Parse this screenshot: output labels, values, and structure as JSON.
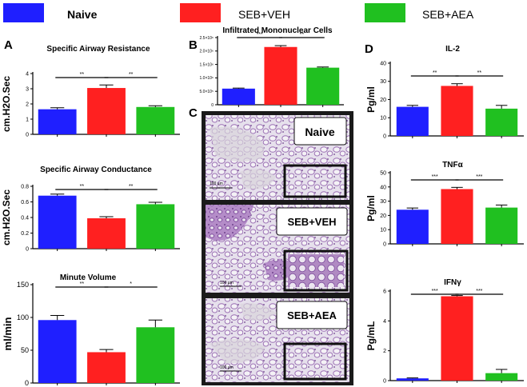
{
  "legend": [
    {
      "label": "Naive",
      "color": "#1f1fff"
    },
    {
      "label": "SEB+VEH",
      "color": "#ff2020"
    },
    {
      "label": "SEB+AEA",
      "color": "#20c020"
    }
  ],
  "panels": {
    "A": "A",
    "B": "B",
    "C": "C",
    "D": "D"
  },
  "histology": {
    "labels": [
      "Naive",
      "SEB+VEH",
      "SEB+AEA"
    ],
    "scale_bar": "100 µm"
  },
  "chart_data": [
    {
      "id": "resistance",
      "type": "bar",
      "title": "Specific Airway Resistance",
      "ylabel": "cm.H2O.Sec",
      "categories": [
        "Naive",
        "SEB+VEH",
        "SEB+AEA"
      ],
      "values": [
        1.65,
        3.05,
        1.8
      ],
      "errors": [
        0.1,
        0.2,
        0.08
      ],
      "ylim": [
        0,
        4
      ],
      "yticks": [
        0,
        1,
        2,
        3,
        4
      ],
      "sig": [
        {
          "a": 0,
          "b": 1,
          "text": "**"
        },
        {
          "a": 1,
          "b": 2,
          "text": "**"
        }
      ]
    },
    {
      "id": "conductance",
      "type": "bar",
      "title": "Specific Airway Conductance",
      "ylabel": "cm.H2O.Sec",
      "categories": [
        "Naive",
        "SEB+VEH",
        "SEB+AEA"
      ],
      "values": [
        0.68,
        0.39,
        0.57
      ],
      "errors": [
        0.02,
        0.02,
        0.025
      ],
      "ylim": [
        0,
        0.8
      ],
      "yticks": [
        0.0,
        0.2,
        0.4,
        0.6,
        0.8
      ],
      "sig": [
        {
          "a": 0,
          "b": 1,
          "text": "**"
        },
        {
          "a": 1,
          "b": 2,
          "text": "**"
        }
      ]
    },
    {
      "id": "minute",
      "type": "bar",
      "title": "Minute Volume",
      "ylabel": "ml/min",
      "categories": [
        "Naive",
        "SEB+VEH",
        "SEB+AEA"
      ],
      "values": [
        96,
        47,
        85
      ],
      "errors": [
        7,
        4,
        11
      ],
      "ylim": [
        0,
        150
      ],
      "yticks": [
        0,
        50,
        100,
        150
      ],
      "sig": [
        {
          "a": 0,
          "b": 1,
          "text": "**"
        },
        {
          "a": 1,
          "b": 2,
          "text": "*"
        }
      ]
    },
    {
      "id": "cells",
      "type": "bar",
      "title": "Infiltrated Mononuclear Cells",
      "ylabel": "",
      "categories": [
        "Naive",
        "SEB+VEH",
        "SEB+AEA"
      ],
      "values": [
        600000,
        2150000,
        1380000
      ],
      "errors": [
        20000,
        50000,
        25000
      ],
      "ylim": [
        0,
        2500000
      ],
      "yticks": [
        0,
        500000,
        1000000,
        1500000,
        2000000,
        2500000
      ],
      "yticklabels": [
        "0",
        "5.0×10⁵",
        "1.0×10⁶",
        "1.5×10⁶",
        "2.0×10⁶",
        "2.5×10⁶"
      ],
      "sig": [
        {
          "a": 0,
          "b": 1,
          "text": "***"
        },
        {
          "a": 1,
          "b": 2,
          "text": "**"
        }
      ]
    },
    {
      "id": "il2",
      "type": "bar",
      "title": "IL-2",
      "ylabel": "Pg/ml",
      "categories": [
        "Naive",
        "SEB+VEH",
        "SEB+AEA"
      ],
      "values": [
        16,
        27.5,
        15
      ],
      "errors": [
        0.8,
        1.2,
        1.8
      ],
      "ylim": [
        0,
        40
      ],
      "yticks": [
        0,
        10,
        20,
        30,
        40
      ],
      "sig": [
        {
          "a": 0,
          "b": 1,
          "text": "**"
        },
        {
          "a": 1,
          "b": 2,
          "text": "**"
        }
      ]
    },
    {
      "id": "tnfa",
      "type": "bar",
      "title": "TNFα",
      "ylabel": "Pg/ml",
      "categories": [
        "Naive",
        "SEB+VEH",
        "SEB+AEA"
      ],
      "values": [
        24,
        38.5,
        25.5
      ],
      "errors": [
        1.2,
        1.2,
        1.8
      ],
      "ylim": [
        0,
        50
      ],
      "yticks": [
        0,
        10,
        20,
        30,
        40,
        50
      ],
      "sig": [
        {
          "a": 0,
          "b": 1,
          "text": "***"
        },
        {
          "a": 1,
          "b": 2,
          "text": "***"
        }
      ]
    },
    {
      "id": "ifng",
      "type": "bar",
      "title": "IFNγ",
      "ylabel": "Pg/mL",
      "categories": [
        "Naive",
        "SEB+VEH",
        "SEB+AEA"
      ],
      "values": [
        0.15,
        5.65,
        0.5
      ],
      "errors": [
        0.03,
        0.05,
        0.25
      ],
      "ylim": [
        0,
        6
      ],
      "yticks": [
        0,
        2,
        4,
        6
      ],
      "sig": [
        {
          "a": 0,
          "b": 1,
          "text": "***"
        },
        {
          "a": 1,
          "b": 2,
          "text": "***"
        }
      ]
    }
  ]
}
